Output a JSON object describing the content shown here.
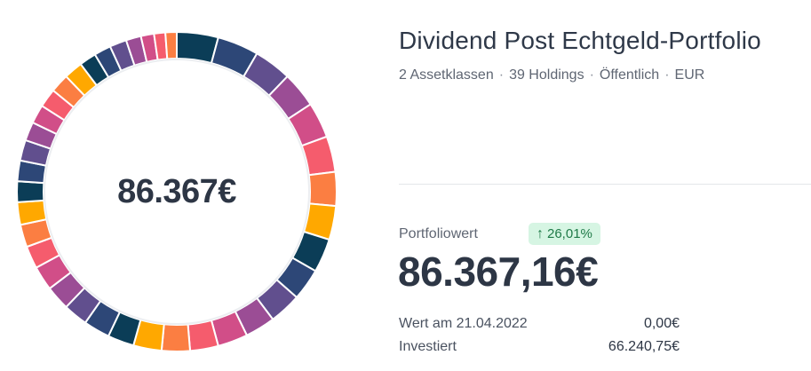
{
  "portfolio": {
    "title": "Dividend Post Echtgeld-Portfolio",
    "meta": [
      "2 Assetklassen",
      "39 Holdings",
      "Öffentlich",
      "EUR"
    ],
    "meta_separator": "·"
  },
  "donut": {
    "center_label": "86.367€",
    "segment_count": 39,
    "palette": [
      "#0b3d57",
      "#2d4777",
      "#614f8e",
      "#9b4d95",
      "#d14e88",
      "#f55c6d",
      "#fb7e42",
      "#ffa800"
    ]
  },
  "value": {
    "label": "Portfoliowert",
    "change": "26,01%",
    "change_icon": "arrow-up-icon",
    "amount": "86.367,16€",
    "rows": [
      {
        "label": "Wert am 21.04.2022",
        "value": "0,00€"
      },
      {
        "label": "Investiert",
        "value": "66.240,75€"
      }
    ]
  },
  "colors": {
    "text_primary": "#2d3645",
    "text_secondary": "#5f6673",
    "badge_bg": "#d6f5e3",
    "badge_text": "#1f7a48"
  }
}
